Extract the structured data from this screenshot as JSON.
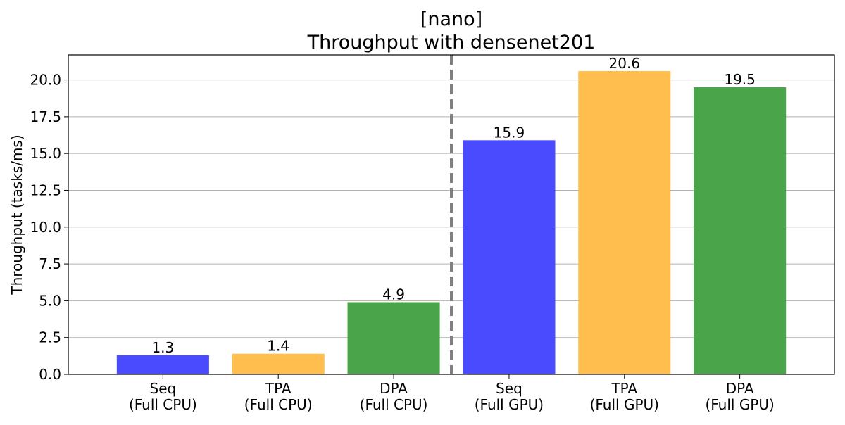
{
  "chart_data": {
    "type": "bar",
    "title_line1": "[nano]",
    "title_line2": "Throughput with densenet201",
    "xlabel": "",
    "ylabel": "Throughput (tasks/ms)",
    "ylim": [
      0,
      21.7
    ],
    "yticks": [
      0.0,
      2.5,
      5.0,
      7.5,
      10.0,
      12.5,
      15.0,
      17.5,
      20.0
    ],
    "ytick_labels": [
      "0.0",
      "2.5",
      "5.0",
      "7.5",
      "10.0",
      "12.5",
      "15.0",
      "17.5",
      "20.0"
    ],
    "grid": "horizontal",
    "categories": [
      {
        "line1": "Seq",
        "line2": "(Full CPU)"
      },
      {
        "line1": "TPA",
        "line2": "(Full CPU)"
      },
      {
        "line1": "DPA",
        "line2": "(Full CPU)"
      },
      {
        "line1": "Seq",
        "line2": "(Full GPU)"
      },
      {
        "line1": "TPA",
        "line2": "(Full GPU)"
      },
      {
        "line1": "DPA",
        "line2": "(Full GPU)"
      }
    ],
    "values": [
      1.3,
      1.4,
      4.9,
      15.9,
      20.6,
      19.5
    ],
    "value_labels": [
      "1.3",
      "1.4",
      "4.9",
      "15.9",
      "20.6",
      "19.5"
    ],
    "bar_colors": [
      "#4a4aff",
      "#ffbe4d",
      "#4aa54a",
      "#4a4aff",
      "#ffbe4d",
      "#4aa54a"
    ],
    "separator": {
      "between_index": [
        2,
        3
      ],
      "style": "dashed",
      "color": "#808080"
    }
  }
}
